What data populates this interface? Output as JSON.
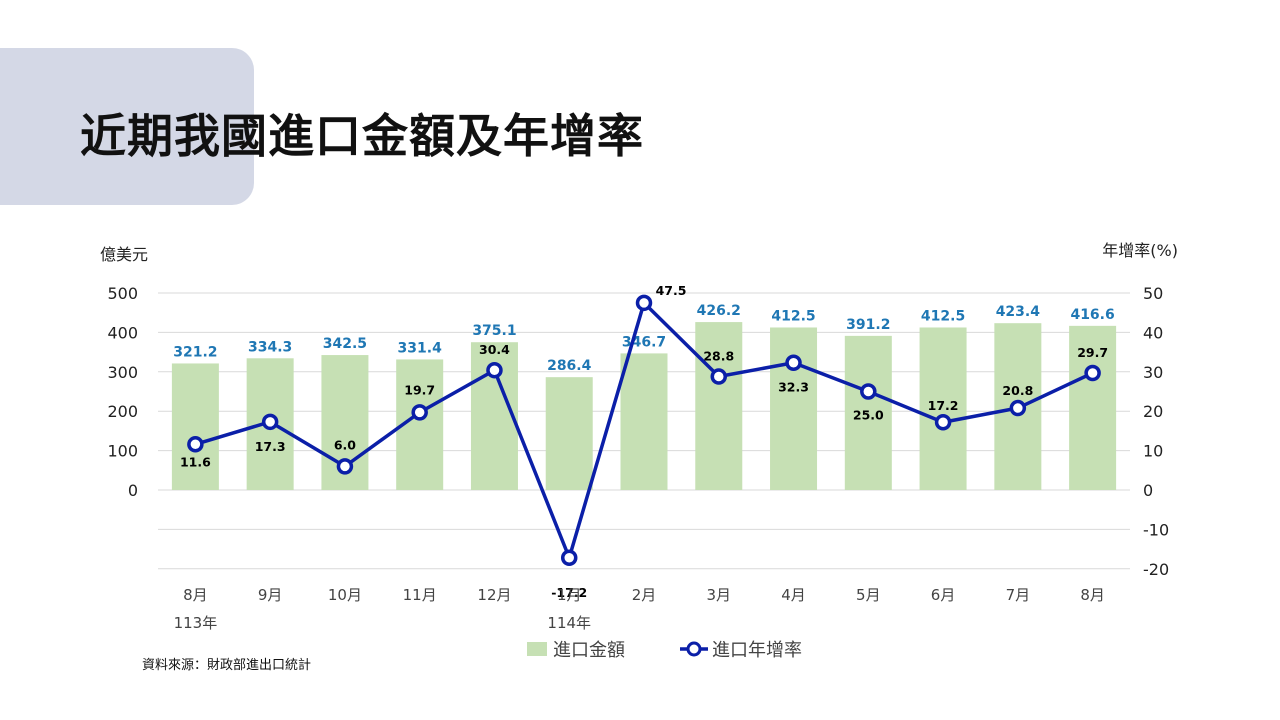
{
  "page": {
    "title": "近期我國進口金額及年增率",
    "source": "資料來源：財政部進出口統計"
  },
  "chart_data": {
    "type": "bar",
    "combo": "bar+line (dual axis)",
    "categories": [
      "8月",
      "9月",
      "10月",
      "11月",
      "12月",
      "1月",
      "2月",
      "3月",
      "4月",
      "5月",
      "6月",
      "7月",
      "8月"
    ],
    "year_labels": [
      {
        "index": 0,
        "label": "113年"
      },
      {
        "index": 5,
        "label": "114年"
      }
    ],
    "series": [
      {
        "name": "進口金額",
        "type": "bar",
        "axis": "left",
        "values": [
          321.2,
          334.3,
          342.5,
          331.4,
          375.1,
          286.4,
          346.7,
          426.2,
          412.5,
          391.2,
          412.5,
          423.4,
          416.6
        ]
      },
      {
        "name": "進口年增率",
        "type": "line",
        "axis": "right",
        "values": [
          11.6,
          17.3,
          6.0,
          19.7,
          30.4,
          -17.2,
          47.5,
          28.8,
          32.3,
          25.0,
          17.2,
          20.8,
          29.7
        ]
      }
    ],
    "ylabel": "億美元",
    "y2label": "年增率(%)",
    "yticks": [
      0,
      100,
      200,
      300,
      400,
      500
    ],
    "y2ticks": [
      -20,
      -10,
      0,
      10,
      20,
      30,
      40,
      50
    ],
    "ylim": [
      -200,
      500
    ],
    "y2lim": [
      -20,
      50
    ],
    "grid": true,
    "legend": "bottom",
    "colors": {
      "bar": "#c6e0b4",
      "bar_label": "#1f77b4",
      "line": "#0b1fa8",
      "line_label": "#000000"
    }
  }
}
